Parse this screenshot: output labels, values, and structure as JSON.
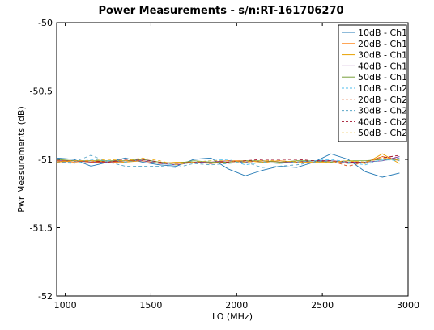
{
  "chart_data": {
    "type": "line",
    "title": "Power Measurements - s/n:RT-161706270",
    "xlabel": "LO (MHz)",
    "ylabel": "Pwr Measurements (dB)",
    "xlim": [
      950,
      3000
    ],
    "ylim": [
      -52,
      -50
    ],
    "xticks": [
      1000,
      1500,
      2000,
      2500,
      3000
    ],
    "yticks": [
      -50,
      -50.5,
      -51,
      -51.5,
      -52
    ],
    "xtick_labels": [
      "1000",
      "1500",
      "2000",
      "2500",
      "3000"
    ],
    "ytick_labels": [
      "-50",
      "-50.5",
      "-51",
      "-51.5",
      "-52"
    ],
    "legend_position": "top-right",
    "grid": false,
    "x": [
      950,
      1050,
      1150,
      1250,
      1350,
      1450,
      1550,
      1650,
      1750,
      1850,
      1950,
      2050,
      2150,
      2250,
      2350,
      2450,
      2550,
      2650,
      2750,
      2850,
      2950
    ],
    "series": [
      {
        "name": "10dB - Ch1",
        "color": "#1f77b4",
        "dash": false,
        "values": [
          -50.99,
          -51.0,
          -51.05,
          -51.02,
          -50.99,
          -51.02,
          -51.04,
          -51.05,
          -51.0,
          -50.99,
          -51.07,
          -51.12,
          -51.08,
          -51.05,
          -51.06,
          -51.02,
          -50.96,
          -51.0,
          -51.09,
          -51.13,
          -51.1
        ]
      },
      {
        "name": "20dB - Ch1",
        "color": "#ff7f0e",
        "dash": false,
        "values": [
          -51.01,
          -51.02,
          -51.01,
          -51.02,
          -51.02,
          -51.0,
          -51.02,
          -51.03,
          -51.02,
          -51.02,
          -51.01,
          -51.01,
          -51.02,
          -51.01,
          -51.02,
          -51.02,
          -51.01,
          -51.03,
          -51.02,
          -50.98,
          -51.01
        ]
      },
      {
        "name": "30dB - Ch1",
        "color": "#e8a000",
        "dash": false,
        "values": [
          -51.02,
          -51.01,
          -51.02,
          -51.01,
          -51.02,
          -51.01,
          -51.03,
          -51.02,
          -51.02,
          -51.03,
          -51.02,
          -51.01,
          -51.02,
          -51.03,
          -51.01,
          -51.02,
          -51.02,
          -51.01,
          -51.03,
          -50.96,
          -51.03
        ]
      },
      {
        "name": "40dB - Ch1",
        "color": "#7b3294",
        "dash": false,
        "values": [
          -51.01,
          -51.01,
          -51.02,
          -51.02,
          -51.01,
          -51.01,
          -51.03,
          -51.04,
          -51.02,
          -51.02,
          -51.01,
          -51.02,
          -51.01,
          -51.02,
          -51.02,
          -51.01,
          -51.01,
          -51.02,
          -51.02,
          -51.01,
          -50.98
        ]
      },
      {
        "name": "50dB - Ch1",
        "color": "#77a03a",
        "dash": false,
        "values": [
          -51.0,
          -51.01,
          -51.01,
          -51.01,
          -51.01,
          -51.0,
          -51.02,
          -51.03,
          -51.01,
          -51.02,
          -51.02,
          -51.01,
          -51.01,
          -51.02,
          -51.01,
          -51.01,
          -51.02,
          -51.01,
          -51.01,
          -51.0,
          -51.0
        ]
      },
      {
        "name": "10dB - Ch2",
        "color": "#4dbeee",
        "dash": true,
        "values": [
          -51.02,
          -51.03,
          -51.0,
          -51.01,
          -51.02,
          -51.0,
          -51.03,
          -51.04,
          -51.02,
          -51.01,
          -51.0,
          -51.04,
          -51.02,
          -51.03,
          -51.02,
          -51.01,
          -51.0,
          -51.02,
          -51.04,
          -51.0,
          -51.01
        ]
      },
      {
        "name": "20dB - Ch2",
        "color": "#d95319",
        "dash": true,
        "values": [
          -51.01,
          -51.01,
          -51.02,
          -51.02,
          -51.01,
          -51.01,
          -51.03,
          -51.03,
          -51.02,
          -51.03,
          -51.01,
          -51.02,
          -51.01,
          -51.01,
          -51.02,
          -51.02,
          -51.01,
          -51.05,
          -51.02,
          -50.98,
          -51.0
        ]
      },
      {
        "name": "30dB - Ch2",
        "color": "#5aa6c8",
        "dash": true,
        "values": [
          -51.02,
          -51.02,
          -50.97,
          -51.02,
          -51.05,
          -51.05,
          -51.05,
          -51.06,
          -51.03,
          -51.04,
          -51.03,
          -51.02,
          -51.06,
          -51.05,
          -51.04,
          -51.02,
          -51.01,
          -51.03,
          -51.02,
          -51.01,
          -50.99
        ]
      },
      {
        "name": "40dB - Ch2",
        "color": "#a2142f",
        "dash": true,
        "values": [
          -51.02,
          -51.01,
          -51.01,
          -51.02,
          -51.0,
          -51.0,
          -51.02,
          -51.03,
          -51.02,
          -51.03,
          -51.02,
          -51.01,
          -51.0,
          -51.0,
          -51.0,
          -51.01,
          -51.01,
          -51.02,
          -51.02,
          -50.99,
          -50.97
        ]
      },
      {
        "name": "50dB - Ch2",
        "color": "#edb120",
        "dash": true,
        "values": [
          -51.02,
          -51.01,
          -51.01,
          -51.0,
          -51.01,
          -50.99,
          -51.01,
          -51.04,
          -51.02,
          -51.01,
          -51.01,
          -51.02,
          -51.01,
          -51.01,
          -51.02,
          -51.02,
          -51.02,
          -51.01,
          -51.02,
          -50.99,
          -51.0
        ]
      }
    ]
  }
}
